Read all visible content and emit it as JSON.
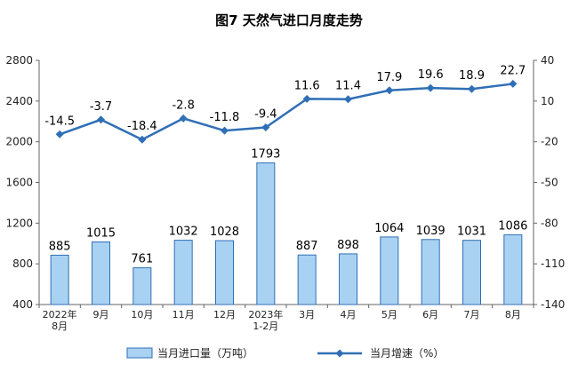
{
  "chart_data": {
    "type": "bar+line",
    "title": "图7  天然气进口月度走势",
    "categories": [
      [
        "2022年",
        "8月"
      ],
      [
        "9月"
      ],
      [
        "10月"
      ],
      [
        "11月"
      ],
      [
        "12月"
      ],
      [
        "2023年",
        "1-2月"
      ],
      [
        "3月"
      ],
      [
        "4月"
      ],
      [
        "5月"
      ],
      [
        "6月"
      ],
      [
        "7月"
      ],
      [
        "8月"
      ]
    ],
    "series": [
      {
        "name": "当月进口量（万吨）",
        "type": "bar",
        "axis": "left",
        "color": "#a9d2f2",
        "border_color": "#2f6fb6",
        "values": [
          885,
          1015,
          761,
          1032,
          1028,
          1793,
          887,
          898,
          1064,
          1039,
          1031,
          1086
        ],
        "labels": [
          "885",
          "1015",
          "761",
          "1032",
          "1028",
          "1793",
          "887",
          "898",
          "1064",
          "1039",
          "1031",
          "1086"
        ]
      },
      {
        "name": "当月增速（%）",
        "type": "line",
        "axis": "right",
        "color": "#2f6fb6",
        "marker": "diamond",
        "values": [
          -14.5,
          -3.7,
          -18.4,
          -2.8,
          -11.8,
          -9.4,
          11.6,
          11.4,
          17.9,
          19.6,
          18.9,
          22.7
        ],
        "labels": [
          "-14.5",
          "-3.7",
          "-18.4",
          "-2.8",
          "-11.8",
          "-9.4",
          "11.6",
          "11.4",
          "17.9",
          "19.6",
          "18.9",
          "22.7"
        ]
      }
    ],
    "y_left": {
      "range": [
        400,
        2800
      ],
      "ticks": [
        "400",
        "800",
        "1200",
        "1600",
        "2000",
        "2400",
        "2800"
      ]
    },
    "y_right": {
      "range": [
        -140,
        40
      ],
      "ticks": [
        "-140",
        "-110",
        "-80",
        "-50",
        "-20",
        "10",
        "40"
      ]
    },
    "grid": false,
    "legend_position": "bottom"
  }
}
